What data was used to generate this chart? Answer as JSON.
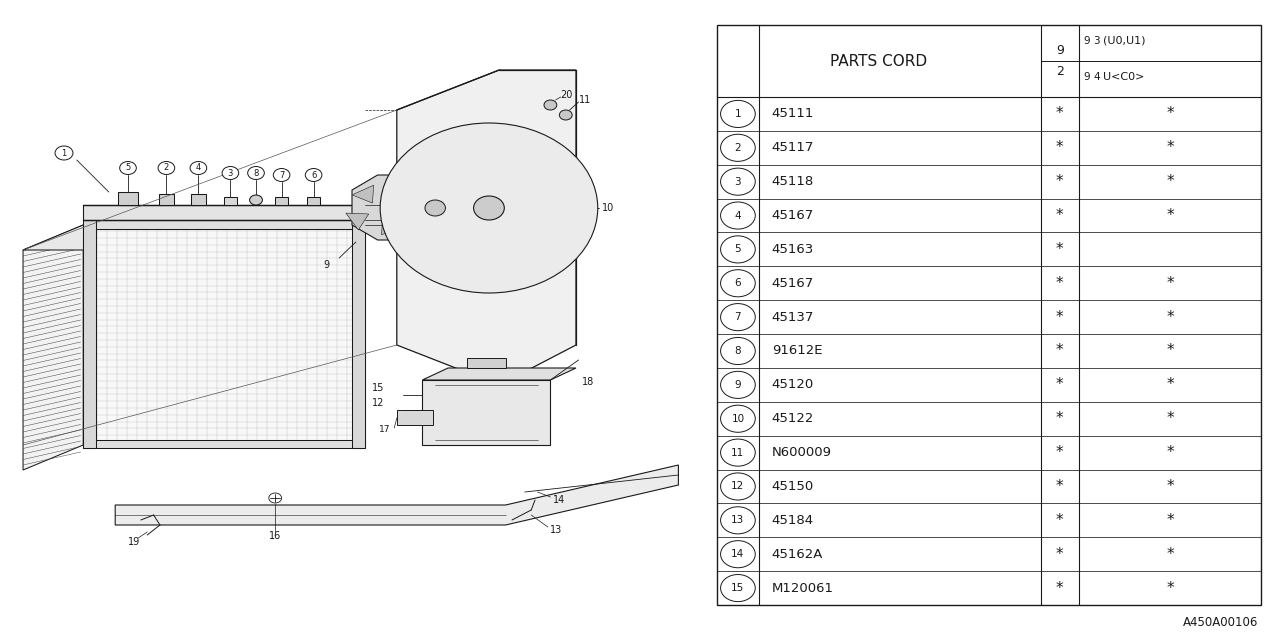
{
  "bg_color": "#ffffff",
  "line_color": "#1a1a1a",
  "ref_code": "A450A00106",
  "table_header": "PARTS CORD",
  "col2_top": "9",
  "col2_bot": "2",
  "col3_top1": "9",
  "col3_top2": "3",
  "col3_top3": "(U0,U1)",
  "col3_bot1": "9",
  "col3_bot2": "4",
  "col3_bot3": "U<C0>",
  "rows": [
    {
      "num": "1",
      "part": "45111",
      "c3": "*",
      "c4": "*"
    },
    {
      "num": "2",
      "part": "45117",
      "c3": "*",
      "c4": "*"
    },
    {
      "num": "3",
      "part": "45118",
      "c3": "*",
      "c4": "*"
    },
    {
      "num": "4",
      "part": "45167",
      "c3": "*",
      "c4": "*"
    },
    {
      "num": "5",
      "part": "45163",
      "c3": "*",
      "c4": ""
    },
    {
      "num": "6",
      "part": "45167",
      "c3": "*",
      "c4": "*"
    },
    {
      "num": "7",
      "part": "45137",
      "c3": "*",
      "c4": "*"
    },
    {
      "num": "8",
      "part": "91612E",
      "c3": "*",
      "c4": "*"
    },
    {
      "num": "9",
      "part": "45120",
      "c3": "*",
      "c4": "*"
    },
    {
      "num": "10",
      "part": "45122",
      "c3": "*",
      "c4": "*"
    },
    {
      "num": "11",
      "part": "N600009",
      "c3": "*",
      "c4": "*"
    },
    {
      "num": "12",
      "part": "45150",
      "c3": "*",
      "c4": "*"
    },
    {
      "num": "13",
      "part": "45184",
      "c3": "*",
      "c4": "*"
    },
    {
      "num": "14",
      "part": "45162A",
      "c3": "*",
      "c4": "*"
    },
    {
      "num": "15",
      "part": "M120061",
      "c3": "*",
      "c4": "*"
    }
  ]
}
